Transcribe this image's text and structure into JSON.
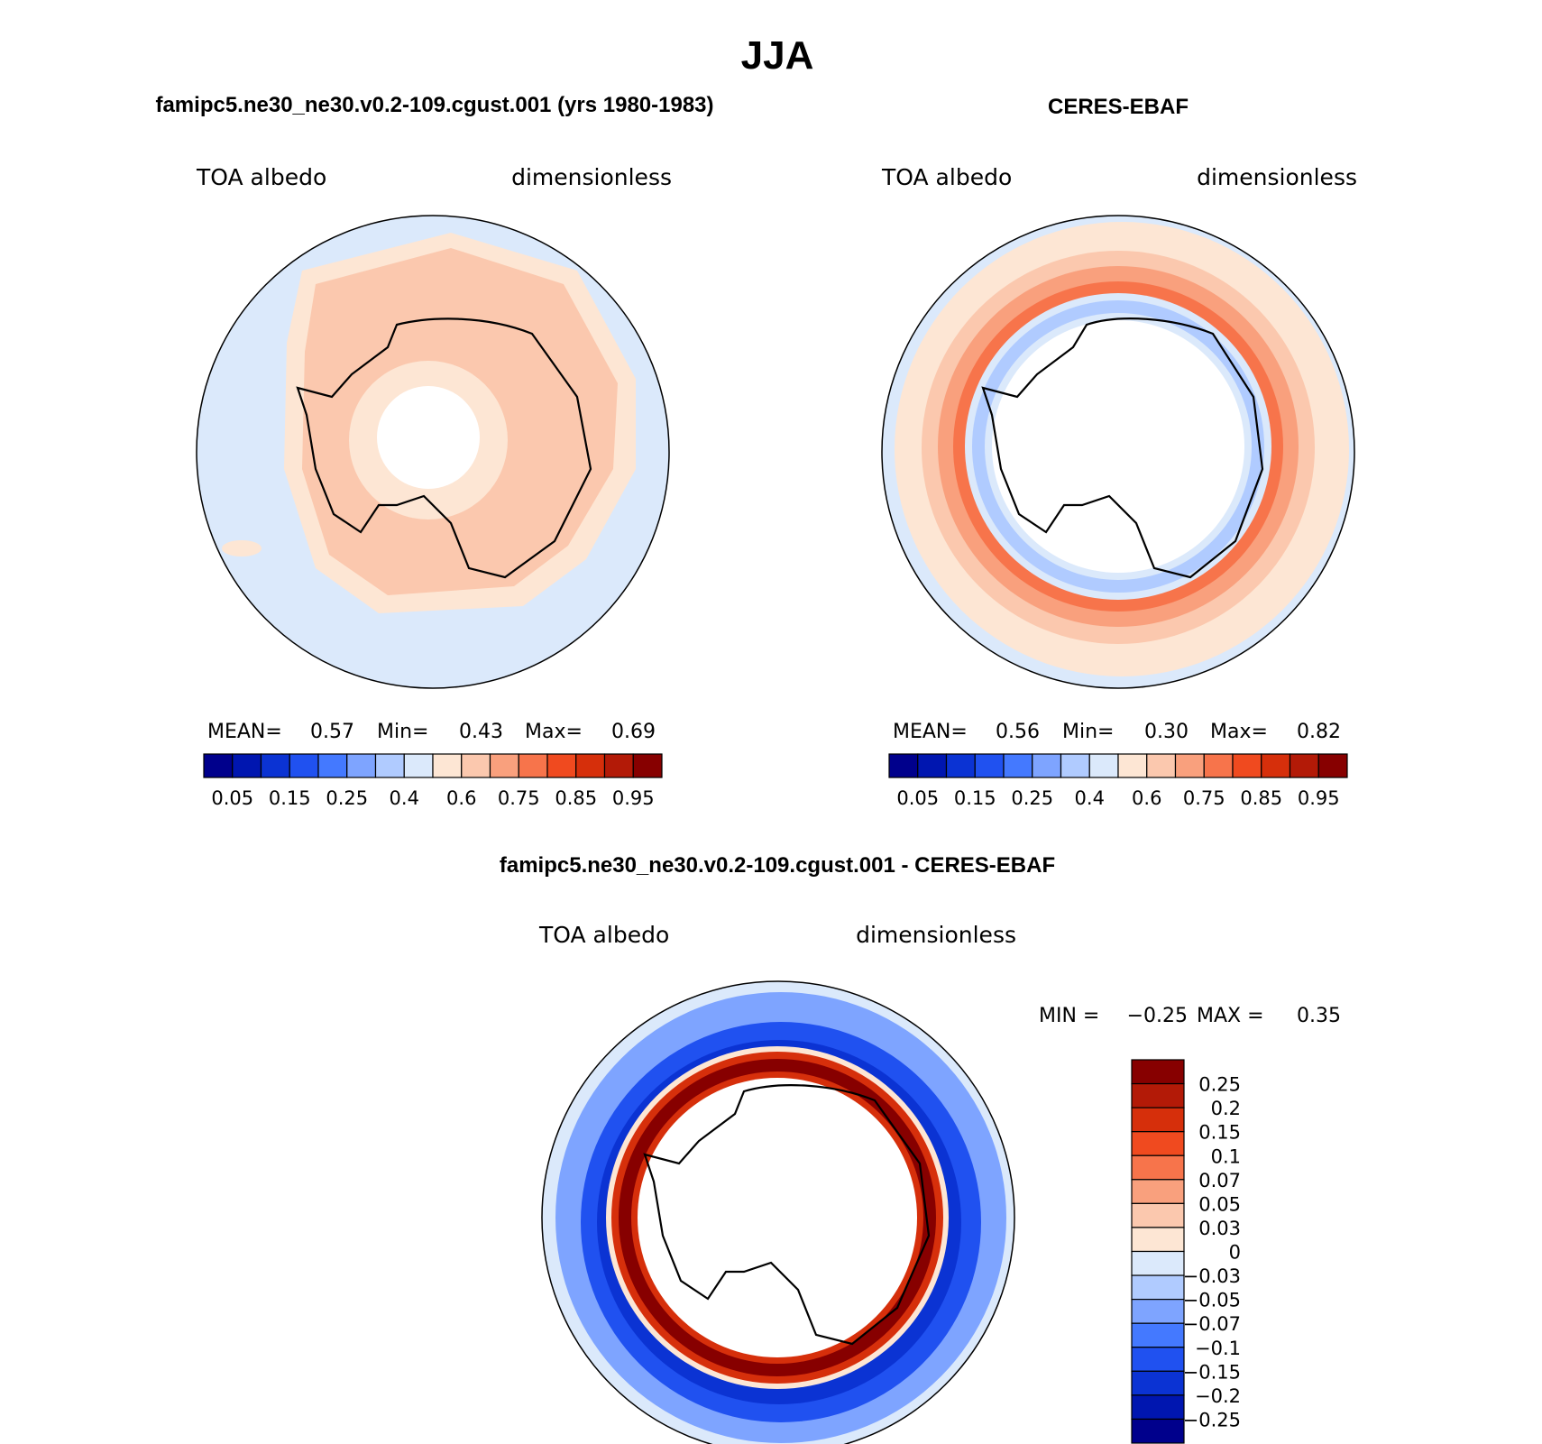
{
  "chart_data": [
    {
      "type": "heatmap",
      "panel": "model",
      "title": "famipc5.ne30_ne30.v0.2-109.cgust.001 (yrs 1980-1983)",
      "left_label": "TOA albedo",
      "right_label": "dimensionless",
      "stats": {
        "mean_label": "MEAN=",
        "mean": "0.57",
        "min_label": "Min=",
        "min": "0.43",
        "max_label": "Max=",
        "max": "0.69"
      },
      "colorbar": {
        "colors": [
          "#00008c",
          "#0016b0",
          "#0b33d3",
          "#2051f0",
          "#4479ff",
          "#7ea4ff",
          "#b0cbff",
          "#dbe9fb",
          "#fde6d4",
          "#fbc8ae",
          "#f9a07d",
          "#f7744b",
          "#f04a1f",
          "#d62f0b",
          "#b31a07",
          "#870000"
        ],
        "tick_labels": [
          "0.05",
          "0.15",
          "0.25",
          "0.4",
          "0.6",
          "0.75",
          "0.85",
          "0.95"
        ]
      },
      "field_rings": [
        {
          "value": 0.45,
          "color": "#dbe9fb"
        },
        {
          "value": 0.52,
          "color": "#fde6d4"
        },
        {
          "value": 0.6,
          "color": "#fbc8ae"
        },
        {
          "value": 0.55,
          "color": "#fde6d4"
        }
      ]
    },
    {
      "type": "heatmap",
      "panel": "obs",
      "title": "CERES-EBAF",
      "left_label": "TOA albedo",
      "right_label": "dimensionless",
      "stats": {
        "mean_label": "MEAN=",
        "mean": "0.56",
        "min_label": "Min=",
        "min": "0.30",
        "max_label": "Max=",
        "max": "0.82"
      },
      "colorbar": {
        "colors": [
          "#00008c",
          "#0016b0",
          "#0b33d3",
          "#2051f0",
          "#4479ff",
          "#7ea4ff",
          "#b0cbff",
          "#dbe9fb",
          "#fde6d4",
          "#fbc8ae",
          "#f9a07d",
          "#f7744b",
          "#f04a1f",
          "#d62f0b",
          "#b31a07",
          "#870000"
        ],
        "tick_labels": [
          "0.05",
          "0.15",
          "0.25",
          "0.4",
          "0.6",
          "0.75",
          "0.85",
          "0.95"
        ]
      },
      "field_rings": [
        {
          "value": 0.45,
          "color": "#dbe9fb"
        },
        {
          "value": 0.55,
          "color": "#fde6d4"
        },
        {
          "value": 0.65,
          "color": "#fbc8ae"
        },
        {
          "value": 0.75,
          "color": "#f9a07d"
        },
        {
          "value": 0.82,
          "color": "#f7744b"
        },
        {
          "value": 0.38,
          "color": "#b0cbff"
        },
        {
          "value": 0.48,
          "color": "#dbe9fb"
        }
      ]
    },
    {
      "type": "heatmap",
      "panel": "difference",
      "title": "famipc5.ne30_ne30.v0.2-109.cgust.001 - CERES-EBAF",
      "left_label": "TOA albedo",
      "right_label": "dimensionless",
      "stats": {
        "min_label": "MIN =",
        "min": "−0.25",
        "max_label": "MAX =",
        "max": "0.35"
      },
      "colorbar": {
        "colors": [
          "#870000",
          "#b31a07",
          "#d62f0b",
          "#f04a1f",
          "#f7744b",
          "#f9a07d",
          "#fbc8ae",
          "#fde6d4",
          "#dbe9fb",
          "#b0cbff",
          "#7ea4ff",
          "#4479ff",
          "#2051f0",
          "#0b33d3",
          "#0016b0",
          "#00008c"
        ],
        "tick_labels": [
          "0.25",
          "0.2",
          "0.15",
          "0.1",
          "0.07",
          "0.05",
          "0.03",
          "0",
          "−0.03",
          "−0.05",
          "−0.07",
          "−0.1",
          "−0.15",
          "−0.2",
          "−0.25"
        ]
      },
      "field_rings": [
        {
          "value": -0.03,
          "color": "#dbe9fb"
        },
        {
          "value": -0.07,
          "color": "#7ea4ff"
        },
        {
          "value": -0.15,
          "color": "#2051f0"
        },
        {
          "value": -0.2,
          "color": "#0b33d3"
        },
        {
          "value": 0.0,
          "color": "#fde6d4"
        },
        {
          "value": 0.15,
          "color": "#d62f0b"
        },
        {
          "value": 0.25,
          "color": "#870000"
        }
      ]
    }
  ],
  "figure": {
    "season_title": "JJA"
  }
}
